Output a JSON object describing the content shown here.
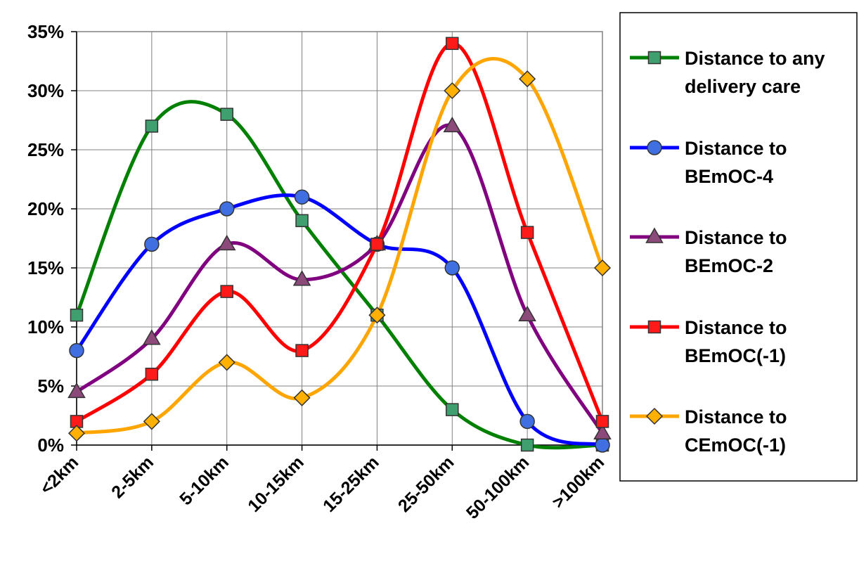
{
  "chart_data": {
    "type": "line",
    "categories": [
      "<2km",
      "2-5km",
      "5-10km",
      "10-15km",
      "15-25km",
      "25-50km",
      "50-100km",
      ">100km"
    ],
    "y_ticks": [
      "0%",
      "5%",
      "10%",
      "15%",
      "20%",
      "25%",
      "30%",
      "35%"
    ],
    "ylim": [
      0,
      35
    ],
    "y_unit": "%",
    "grid": true,
    "smooth": true,
    "legend_position": "right",
    "series": [
      {
        "name": "Distance to any delivery care",
        "legend_lines": [
          "Distance to any",
          "delivery care"
        ],
        "color": "#008000",
        "fill": "#3f9f6f",
        "marker": "square",
        "values": [
          11,
          27,
          28,
          19,
          11,
          3,
          0,
          0
        ]
      },
      {
        "name": "Distance to BEmOC-4",
        "legend_lines": [
          "Distance to",
          "BEmOC-4"
        ],
        "color": "#0000ff",
        "fill": "#3f6fe0",
        "marker": "circle",
        "values": [
          8,
          17,
          20,
          21,
          17,
          15,
          2,
          0
        ]
      },
      {
        "name": "Distance to BEmOC-2",
        "legend_lines": [
          "Distance to",
          "BEmOC-2"
        ],
        "color": "#800080",
        "fill": "#8b4a7a",
        "marker": "triangle",
        "values": [
          4.5,
          9,
          17,
          14,
          17,
          27,
          11,
          1
        ]
      },
      {
        "name": "Distance to BEmOC(-1)",
        "legend_lines": [
          "Distance to",
          "BEmOC(-1)"
        ],
        "color": "#ff0000",
        "fill": "#ff1a1a",
        "marker": "square",
        "values": [
          2,
          6,
          13,
          8,
          17,
          34,
          18,
          2
        ]
      },
      {
        "name": "Distance to CEmOC(-1)",
        "legend_lines": [
          "Distance to",
          "CEmOC(-1)"
        ],
        "color": "#ffa500",
        "fill": "#ffb000",
        "marker": "diamond",
        "values": [
          1,
          2,
          7,
          4,
          11,
          30,
          31,
          15
        ]
      }
    ]
  }
}
